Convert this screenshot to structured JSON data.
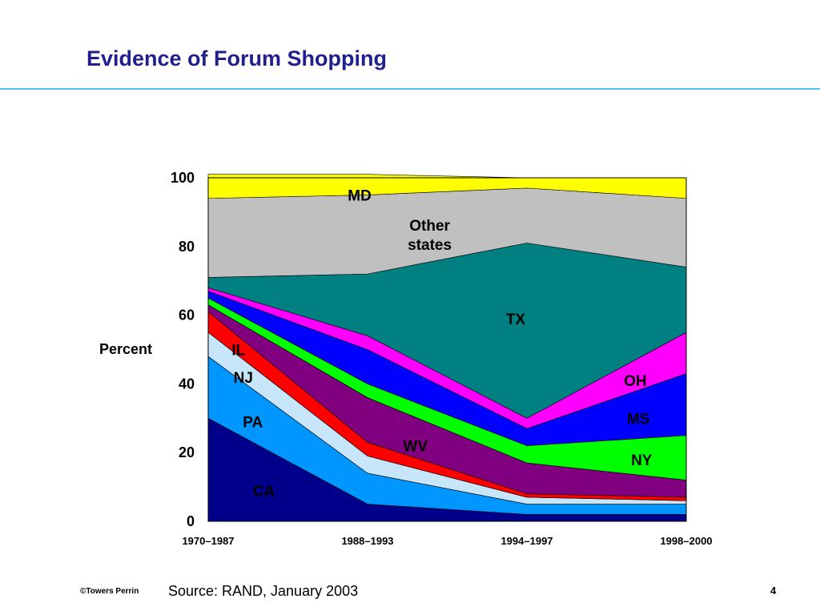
{
  "slide": {
    "title": "Evidence of Forum Shopping",
    "source": "Source: RAND, January 2003",
    "copyright": "©Towers Perrin",
    "page_number": "4"
  },
  "chart_data": {
    "type": "area",
    "stacked": true,
    "title": "",
    "ylabel": "Percent",
    "xlabel": "",
    "ylim": [
      0,
      100
    ],
    "yticks": [
      0,
      20,
      40,
      60,
      80,
      100
    ],
    "categories": [
      "1970–1987",
      "1988–1993",
      "1994–1997",
      "1998–2000"
    ],
    "grid": false,
    "legend": "labels inside areas",
    "series": [
      {
        "name": "CA",
        "color": "#00008b",
        "values": [
          30,
          5,
          2,
          2
        ]
      },
      {
        "name": "PA",
        "color": "#0096ff",
        "values": [
          18,
          9,
          3,
          3
        ]
      },
      {
        "name": "NJ",
        "color": "#c8e6fa",
        "values": [
          7,
          5,
          2,
          1
        ]
      },
      {
        "name": "IL",
        "color": "#ff0000",
        "values": [
          6,
          4,
          1,
          1
        ]
      },
      {
        "name": "WV",
        "color": "#800080",
        "values": [
          2,
          13,
          9,
          5
        ]
      },
      {
        "name": "NY",
        "color": "#00ff00",
        "values": [
          2,
          4,
          5,
          13
        ]
      },
      {
        "name": "MS",
        "color": "#0000ff",
        "values": [
          2,
          10,
          5,
          18
        ]
      },
      {
        "name": "OH",
        "color": "#ff00ff",
        "values": [
          1,
          4,
          3,
          12
        ]
      },
      {
        "name": "TX",
        "color": "#008080",
        "values": [
          3,
          18,
          51,
          19
        ]
      },
      {
        "name": "Other states",
        "color": "#c0c0c0",
        "values": [
          23,
          23,
          16,
          20
        ]
      },
      {
        "name": "MD",
        "color": "#ffff00",
        "values": [
          7,
          6,
          3,
          6
        ]
      }
    ],
    "area_labels": [
      {
        "series": "CA",
        "text": "CA",
        "x": 0.35,
        "y": 9
      },
      {
        "series": "PA",
        "text": "PA",
        "x": 0.28,
        "y": 29
      },
      {
        "series": "NJ",
        "text": "NJ",
        "x": 0.22,
        "y": 42
      },
      {
        "series": "IL",
        "text": "IL",
        "x": 0.19,
        "y": 50
      },
      {
        "series": "WV",
        "text": "WV",
        "x": 1.3,
        "y": 22
      },
      {
        "series": "NY",
        "text": "NY",
        "x": 2.72,
        "y": 18
      },
      {
        "series": "MS",
        "text": "MS",
        "x": 2.7,
        "y": 30
      },
      {
        "series": "OH",
        "text": "OH",
        "x": 2.68,
        "y": 41
      },
      {
        "series": "TX",
        "text": "TX",
        "x": 1.93,
        "y": 59
      },
      {
        "series": "Other states",
        "text": "Other\nstates",
        "x": 1.39,
        "y": 83.5
      },
      {
        "series": "MD",
        "text": "MD",
        "x": 0.95,
        "y": 95
      }
    ]
  }
}
